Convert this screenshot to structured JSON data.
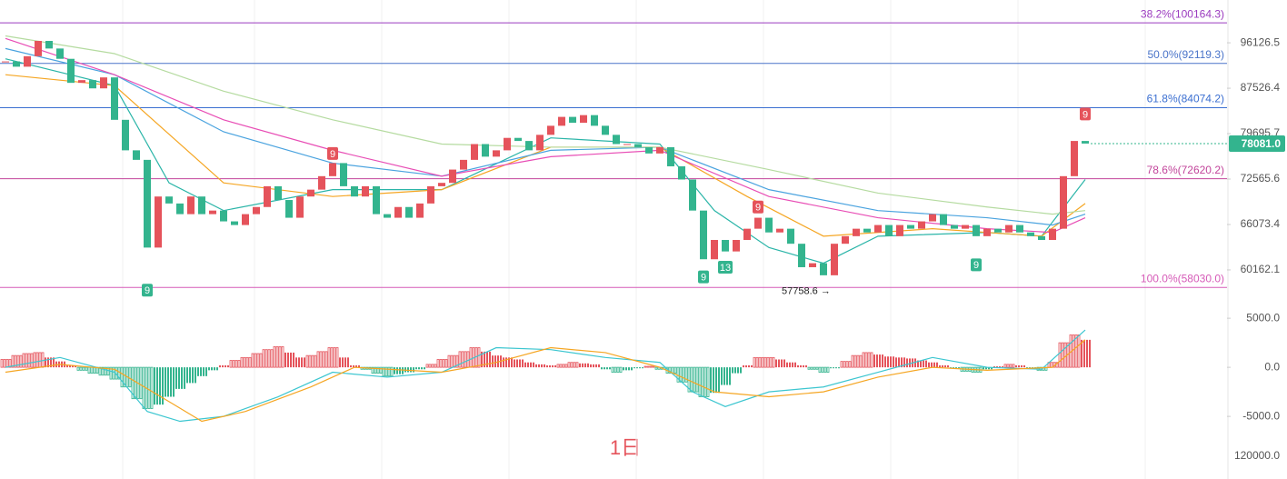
{
  "chart_data": {
    "type": "candlestick",
    "log_scale": true,
    "ylim": [
      105000,
      56020
    ],
    "yticks": [
      96126.5,
      87526.4,
      79695.7,
      72565.6,
      66073.4,
      60162.1
    ],
    "up_color": "#e5535b",
    "down_color": "#33b48e",
    "candles": {
      "close": [
        92500,
        91500,
        93500,
        96500,
        95000,
        93000,
        88500,
        89000,
        87500,
        89500,
        82000,
        77000,
        75500,
        63000,
        70000,
        69000,
        67500,
        70000,
        67500,
        68000,
        66500,
        66000,
        67500,
        68500,
        71500,
        69500,
        67000,
        70000,
        71000,
        73000,
        75000,
        71500,
        70000,
        71500,
        67500,
        67000,
        68500,
        67000,
        69000,
        71500,
        72000,
        74000,
        75500,
        78000,
        76000,
        77000,
        79000,
        78500,
        77000,
        79500,
        81000,
        82500,
        81500,
        82800,
        81000,
        79500,
        78000,
        78000,
        77500,
        76500,
        77500,
        74500,
        72500,
        68000,
        61500,
        64000,
        62500,
        64000,
        65500,
        67000,
        65000,
        65500,
        63500,
        60500,
        61000,
        59500,
        63500,
        64500,
        65500,
        65000,
        66000,
        64500,
        66000,
        65500,
        66500,
        67500,
        66000,
        65500,
        66000,
        64500,
        65500,
        65000,
        66000,
        65000,
        64500,
        64000,
        65500,
        73000,
        78500,
        78081
      ]
    },
    "moving_averages": [
      {
        "color": "#2bb5a8",
        "x": [
          0,
          10,
          15,
          20,
          30,
          40,
          50,
          60,
          65,
          70,
          75,
          80,
          90,
          95,
          99
        ],
        "values": [
          93000,
          88000,
          72000,
          68000,
          71000,
          71000,
          79000,
          78000,
          68000,
          63000,
          61000,
          64500,
          65000,
          64500,
          72500
        ]
      },
      {
        "color": "#f5a623",
        "x": [
          0,
          10,
          20,
          30,
          40,
          50,
          60,
          68,
          75,
          85,
          95,
          99
        ],
        "values": [
          90000,
          88000,
          72000,
          70000,
          71000,
          77500,
          77500,
          70000,
          64500,
          65500,
          64500,
          69000
        ]
      },
      {
        "color": "#4aa3df",
        "x": [
          0,
          10,
          20,
          30,
          40,
          50,
          60,
          70,
          80,
          90,
          96,
          99
        ],
        "values": [
          95000,
          90000,
          80000,
          75000,
          73000,
          77000,
          77500,
          71000,
          68000,
          67000,
          66000,
          67500
        ]
      },
      {
        "color": "#e84db5",
        "x": [
          0,
          10,
          20,
          30,
          40,
          50,
          60,
          70,
          80,
          90,
          96,
          99
        ],
        "values": [
          97000,
          90000,
          82000,
          77000,
          73000,
          76000,
          77000,
          70000,
          67000,
          65500,
          65000,
          67000
        ]
      },
      {
        "color": "#b5dba0",
        "x": [
          0,
          10,
          20,
          30,
          40,
          50,
          60,
          70,
          80,
          90,
          96,
          99
        ],
        "values": [
          97500,
          94000,
          87000,
          82000,
          78000,
          77500,
          77500,
          74000,
          70500,
          68500,
          67500,
          68000
        ]
      }
    ],
    "fib_levels": [
      {
        "label": "38.2%(100164.3)",
        "value": 100164.3,
        "color": "#9b3bbf"
      },
      {
        "label": "50.0%(92119.3)",
        "value": 92119.3,
        "color": "#4a74c9"
      },
      {
        "label": "61.8%(84074.2)",
        "value": 84074.2,
        "color": "#3b6fd1"
      },
      {
        "label": "78.6%(72620.2)",
        "value": 72620.2,
        "color": "#c2459b"
      },
      {
        "label": "100.0%(58030.0)",
        "value": 58030,
        "color": "#d65bb8"
      }
    ],
    "annotations": [
      {
        "text": "9",
        "color": "#e5535b",
        "index": 30,
        "price": 76500
      },
      {
        "text": "9",
        "color": "#e5535b",
        "index": 69,
        "price": 68500
      },
      {
        "text": "9",
        "color": "#e5535b",
        "index": 99,
        "price": 83000
      },
      {
        "text": "9",
        "color": "#33b48e",
        "index": 13,
        "price": 57700
      },
      {
        "text": "9",
        "color": "#33b48e",
        "index": 64,
        "price": 59300
      },
      {
        "text": "13",
        "color": "#33b48e",
        "index": 66,
        "price": 60500
      },
      {
        "text": "9",
        "color": "#33b48e",
        "index": 89,
        "price": 60800
      }
    ],
    "low_label": {
      "text": "57758.6 →",
      "index": 72,
      "price": 57758.6
    },
    "last_price": {
      "label": "78081.0",
      "value": 78081
    },
    "macd": {
      "ylim": [
        -6100,
        6400
      ],
      "y2ticks": [
        {
          "value": 5000,
          "label": "5000.0"
        },
        {
          "value": 0,
          "label": "0.0"
        },
        {
          "value": -5000,
          "label": "-5000.0"
        }
      ],
      "histogram": [
        800,
        1200,
        1400,
        1500,
        1000,
        600,
        200,
        -300,
        -600,
        -800,
        -1200,
        -2000,
        -3200,
        -4200,
        -3800,
        -3000,
        -2200,
        -1600,
        -900,
        -300,
        200,
        700,
        1000,
        1400,
        1800,
        2100,
        1500,
        1000,
        1200,
        1600,
        2000,
        1000,
        200,
        -200,
        -600,
        -900,
        -700,
        -500,
        -200,
        300,
        800,
        1200,
        1600,
        2000,
        1600,
        1200,
        1000,
        800,
        500,
        300,
        200,
        300,
        500,
        400,
        300,
        -200,
        -500,
        -300,
        -100,
        100,
        -200,
        -600,
        -1500,
        -2500,
        -3000,
        -2600,
        -1800,
        -600,
        200,
        1000,
        1000,
        800,
        500,
        200,
        -200,
        -500,
        -100,
        600,
        1200,
        1500,
        1300,
        1100,
        1000,
        900,
        700,
        500,
        200,
        -100,
        -400,
        -500,
        -200,
        100,
        300,
        200,
        -100,
        -300,
        500,
        2500,
        3300,
        2800
      ],
      "lines": [
        {
          "color": "#3cc6d0",
          "x": [
            0,
            5,
            10,
            13,
            16,
            20,
            25,
            30,
            35,
            40,
            45,
            50,
            55,
            60,
            63,
            66,
            70,
            75,
            80,
            85,
            90,
            95,
            99
          ],
          "values": [
            0,
            1000,
            -500,
            -4500,
            -5500,
            -5000,
            -3000,
            -500,
            -1000,
            -500,
            2000,
            1800,
            1000,
            500,
            -2500,
            -4000,
            -2500,
            -2000,
            -500,
            1000,
            0,
            -200,
            3800
          ]
        },
        {
          "color": "#f5a623",
          "x": [
            0,
            5,
            10,
            15,
            18,
            22,
            28,
            32,
            40,
            45,
            50,
            55,
            60,
            65,
            70,
            75,
            80,
            85,
            90,
            96,
            99
          ],
          "values": [
            -500,
            300,
            -200,
            -3500,
            -5500,
            -4500,
            -2000,
            0,
            -500,
            500,
            2000,
            1500,
            0,
            -2500,
            -3000,
            -2500,
            -1000,
            0,
            -300,
            0,
            2800
          ]
        }
      ]
    },
    "volume_axis_label": "120000.0",
    "period_label": "1日"
  }
}
